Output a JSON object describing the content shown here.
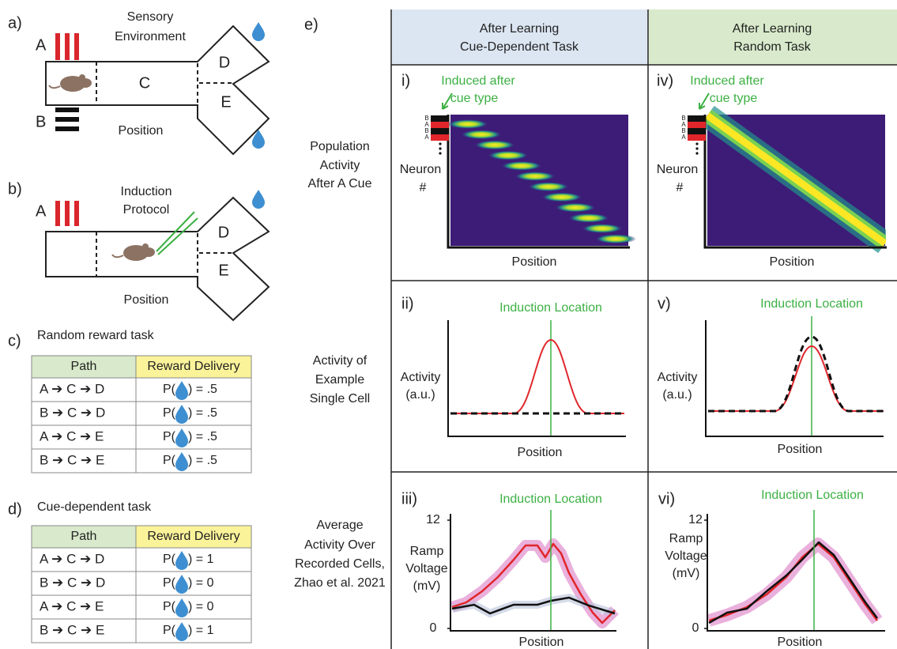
{
  "panel_a": {
    "label": "a)",
    "cue_a": "A",
    "cue_b": "B",
    "title_lines": [
      "Sensory",
      "Environment"
    ],
    "arm_c": "C",
    "arm_d": "D",
    "arm_e": "E",
    "axis": "Position"
  },
  "panel_b": {
    "label": "b)",
    "cue_a": "A",
    "title_lines": [
      "Induction",
      "Protocol"
    ],
    "arm_d": "D",
    "arm_e": "E",
    "axis": "Position"
  },
  "panel_c": {
    "label": "c)",
    "title": "Random reward task",
    "table": {
      "header": [
        "Path",
        "Reward Delivery"
      ],
      "rows": [
        {
          "path": "A ➔ C ➔ D",
          "reward_prefix": "P(",
          "reward_suffix": ") = .5"
        },
        {
          "path": "B ➔ C ➔ D",
          "reward_prefix": "P(",
          "reward_suffix": ") = .5"
        },
        {
          "path": "A ➔ C ➔ E",
          "reward_prefix": "P(",
          "reward_suffix": ") = .5"
        },
        {
          "path": "B ➔ C ➔ E",
          "reward_prefix": "P(",
          "reward_suffix": ") = .5"
        }
      ]
    }
  },
  "panel_d": {
    "label": "d)",
    "title": "Cue-dependent task",
    "table": {
      "header": [
        "Path",
        "Reward Delivery"
      ],
      "rows": [
        {
          "path": "A ➔ C ➔ D",
          "reward_prefix": "P(",
          "reward_suffix": ") = 1"
        },
        {
          "path": "B ➔ C ➔ D",
          "reward_prefix": "P(",
          "reward_suffix": ") = 0"
        },
        {
          "path": "A ➔ C ➔ E",
          "reward_prefix": "P(",
          "reward_suffix": ") = 0"
        },
        {
          "path": "B ➔ C ➔ E",
          "reward_prefix": "P(",
          "reward_suffix": ") = 1"
        }
      ]
    }
  },
  "panel_e": {
    "label": "e)",
    "columns": [
      [
        "After Learning",
        "Cue-Dependent Task"
      ],
      [
        "After Learning",
        "Random Task"
      ]
    ],
    "rows": [
      [
        "Population",
        "Activity",
        "After A Cue"
      ],
      [
        "Activity of",
        "Example",
        "Single Cell"
      ],
      [
        "Average",
        "Activity Over",
        "Recorded Cells,",
        "Zhao et al. 2021"
      ]
    ],
    "i": {
      "label": "i)",
      "annotation": [
        "Induced after",
        "cue type"
      ],
      "cue_labels": [
        "B",
        "A",
        "B",
        "A"
      ],
      "ylabel": [
        "Neuron",
        "#"
      ],
      "xlabel": "Position"
    },
    "iv": {
      "label": "iv)",
      "annotation": [
        "Induced after",
        "cue type"
      ],
      "cue_labels": [
        "B",
        "A",
        "B",
        "A"
      ],
      "ylabel": [
        "Neuron",
        "#"
      ],
      "xlabel": "Position"
    },
    "ii": {
      "label": "ii)",
      "annotation": "Induction Location",
      "ylabel": [
        "Activity",
        "(a.u.)"
      ],
      "xlabel": "Position"
    },
    "v": {
      "label": "v)",
      "annotation": "Induction Location",
      "ylabel": [
        "Activity",
        "(a.u.)"
      ],
      "xlabel": "Position"
    },
    "iii": {
      "label": "iii)",
      "annotation": "Induction Location",
      "ylabel": [
        "Ramp",
        "Voltage",
        "(mV)"
      ],
      "xlabel": "Position",
      "ylim": [
        0,
        12
      ],
      "yticks": [
        0,
        12
      ]
    },
    "vi": {
      "label": "vi)",
      "annotation": "Induction Location",
      "ylabel": [
        "Ramp",
        "Voltage",
        "(mV)"
      ],
      "xlabel": "Position",
      "ylim": [
        0,
        12
      ],
      "yticks": [
        0,
        12
      ]
    }
  }
}
